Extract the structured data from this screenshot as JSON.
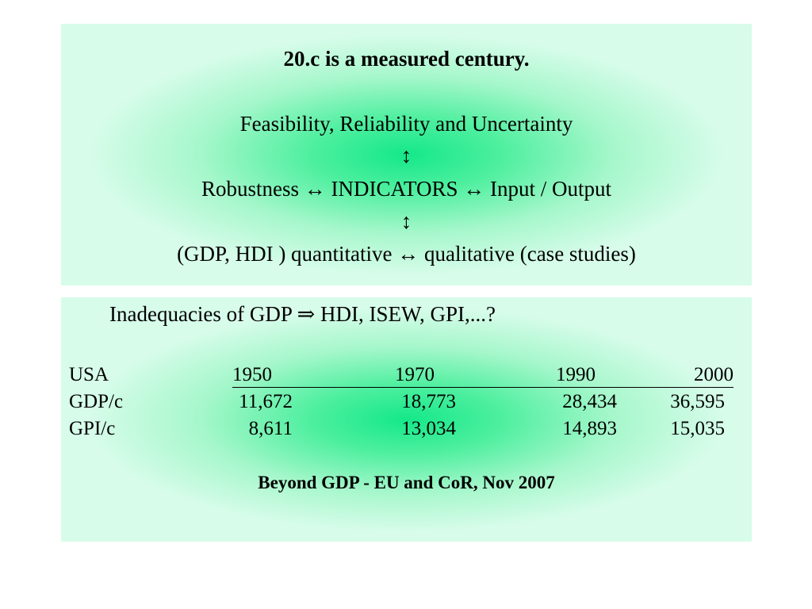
{
  "top_panel": {
    "title": "20.c is a measured century.",
    "line1": "Feasibility, Reliability and Uncertainty",
    "arrow1": "↕",
    "line2": "Robustness ↔ INDICATORS ↔ Input / Output",
    "arrow2": "↕",
    "line3": "(GDP, HDI ) quantitative ↔ qualitative (case studies)"
  },
  "bottom_panel": {
    "heading": "Inadequacies of GDP ⇒ HDI, ISEW, GPI,...?",
    "table": {
      "header": {
        "label": "USA",
        "years": [
          "1950",
          "1970",
          "1990",
          "2000"
        ]
      },
      "rows": [
        {
          "label": "GDP/c",
          "values": [
            "11,672",
            "18,773",
            "28,434",
            "36,595"
          ]
        },
        {
          "label": "GPI/c",
          "values": [
            "8,611",
            "13,034",
            "14,893",
            "15,035"
          ]
        }
      ]
    },
    "source": "Beyond GDP - EU and CoR, Nov 2007"
  }
}
